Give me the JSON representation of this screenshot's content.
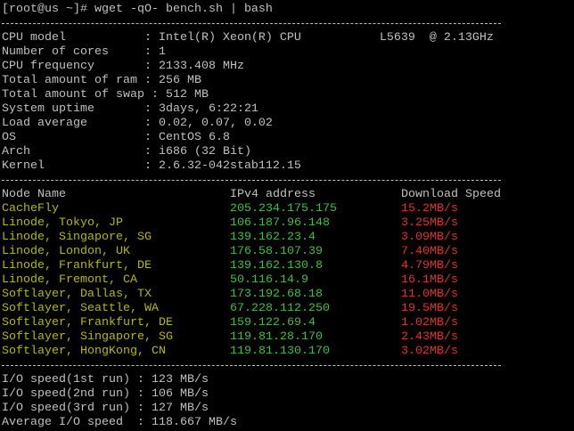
{
  "prompt": "[root@us ~]# wget -qO- bench.sh | bash",
  "system": [
    "CPU model           : Intel(R) Xeon(R) CPU           L5639  @ 2.13GHz",
    "Number of cores     : 1",
    "CPU frequency       : 2133.408 MHz",
    "Total amount of ram : 256 MB",
    "Total amount of swap : 512 MB",
    "System uptime       : 3days, 6:22:21",
    "Load average        : 0.02, 0.07, 0.02",
    "OS                  : CentOS 6.8",
    "Arch                : i686 (32 Bit)",
    "Kernel              : 2.6.32-042stab112.15"
  ],
  "nodes": {
    "header": [
      "Node Name",
      "IPv4 address",
      "Download Speed"
    ],
    "rows": [
      [
        "CacheFly",
        "205.234.175.175",
        "15.2MB/s"
      ],
      [
        "Linode, Tokyo, JP",
        "106.187.96.148",
        "3.25MB/s"
      ],
      [
        "Linode, Singapore, SG",
        "139.162.23.4",
        "3.09MB/s"
      ],
      [
        "Linode, London, UK",
        "176.58.107.39",
        "7.40MB/s"
      ],
      [
        "Linode, Frankfurt, DE",
        "139.162.130.8",
        "4.79MB/s"
      ],
      [
        "Linode, Fremont, CA",
        "50.116.14.9",
        "16.1MB/s"
      ],
      [
        "Softlayer, Dallas, TX",
        "173.192.68.18",
        "11.0MB/s"
      ],
      [
        "Softlayer, Seattle, WA",
        "67.228.112.250",
        "19.5MB/s"
      ],
      [
        "Softlayer, Frankfurt, DE",
        "159.122.69.4",
        "1.02MB/s"
      ],
      [
        "Softlayer, Singapore, SG",
        "119.81.28.170",
        "2.43MB/s"
      ],
      [
        "Softlayer, HongKong, CN",
        "119.81.130.170",
        "3.02MB/s"
      ]
    ]
  },
  "io": [
    "I/O speed(1st run) : 123 MB/s",
    "I/O speed(2nd run) : 106 MB/s",
    "I/O speed(3rd run) : 127 MB/s",
    "Average I/O speed  : 118.667 MB/s"
  ]
}
